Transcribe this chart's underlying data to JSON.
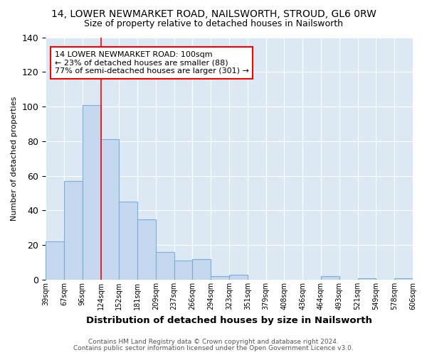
{
  "title1": "14, LOWER NEWMARKET ROAD, NAILSWORTH, STROUD, GL6 0RW",
  "title2": "Size of property relative to detached houses in Nailsworth",
  "xlabel": "Distribution of detached houses by size in Nailsworth",
  "ylabel": "Number of detached properties",
  "bar_values": [
    22,
    57,
    101,
    81,
    45,
    35,
    16,
    11,
    12,
    2,
    3,
    0,
    0,
    0,
    0,
    2,
    0,
    1,
    0,
    1
  ],
  "bin_labels": [
    "39sqm",
    "67sqm",
    "96sqm",
    "124sqm",
    "152sqm",
    "181sqm",
    "209sqm",
    "237sqm",
    "266sqm",
    "294sqm",
    "323sqm",
    "351sqm",
    "379sqm",
    "408sqm",
    "436sqm",
    "464sqm",
    "493sqm",
    "521sqm",
    "549sqm",
    "578sqm",
    "606sqm"
  ],
  "bar_color": "#c5d8f0",
  "bar_edge_color": "#7aafd4",
  "red_line_x": 3.0,
  "annotation_text": "14 LOWER NEWMARKET ROAD: 100sqm\n← 23% of detached houses are smaller (88)\n77% of semi-detached houses are larger (301) →",
  "footer1": "Contains HM Land Registry data © Crown copyright and database right 2024.",
  "footer2": "Contains public sector information licensed under the Open Government Licence v3.0.",
  "ylim": [
    0,
    140
  ],
  "yticks": [
    0,
    20,
    40,
    60,
    80,
    100,
    120,
    140
  ],
  "fig_background": "#ffffff",
  "plot_background": "#dce9f5"
}
